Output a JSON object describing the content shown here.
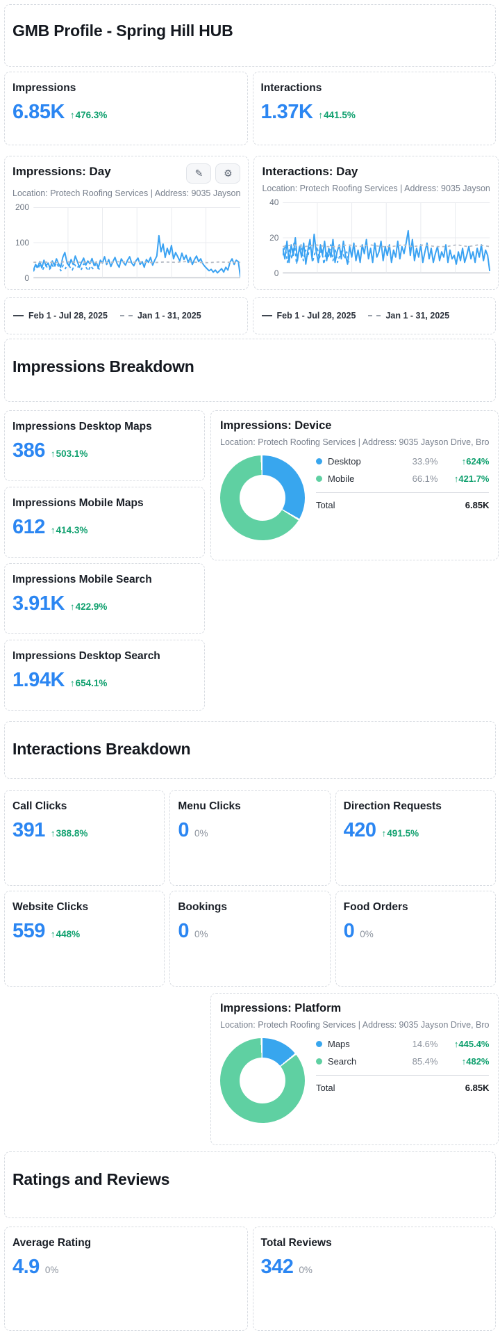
{
  "page_title": "GMB Profile - Spring Hill HUB",
  "toolbar": {
    "edit_icon": "✎",
    "settings_icon": "⚙"
  },
  "legend_row": {
    "solid_label": "Feb 1 - Jul 28, 2025",
    "dashed_label": "Jan 1 - 31, 2025"
  },
  "sections": {
    "impressions_breakdown_title": "Impressions Breakdown",
    "interactions_breakdown_title": "Interactions Breakdown",
    "ratings_title": "Ratings and Reviews"
  },
  "summary_metrics": [
    {
      "label": "Impressions",
      "value": "6.85K",
      "delta": "476.3%",
      "direction": "up"
    },
    {
      "label": "Interactions",
      "value": "1.37K",
      "delta": "441.5%",
      "direction": "up"
    }
  ],
  "impressions_breakdown_metrics": [
    {
      "label": "Impressions Desktop Maps",
      "value": "386",
      "delta": "503.1%",
      "direction": "up"
    },
    {
      "label": "Impressions Mobile Maps",
      "value": "612",
      "delta": "414.3%",
      "direction": "up"
    },
    {
      "label": "Impressions Mobile Search",
      "value": "3.91K",
      "delta": "422.9%",
      "direction": "up"
    },
    {
      "label": "Impressions Desktop Search",
      "value": "1.94K",
      "delta": "654.1%",
      "direction": "up"
    }
  ],
  "interactions_metrics": [
    {
      "label": "Call Clicks",
      "value": "391",
      "delta": "388.8%",
      "direction": "up"
    },
    {
      "label": "Menu Clicks",
      "value": "0",
      "delta": "0%",
      "direction": "flat"
    },
    {
      "label": "Direction Requests",
      "value": "420",
      "delta": "491.5%",
      "direction": "up"
    },
    {
      "label": "Website Clicks",
      "value": "559",
      "delta": "448%",
      "direction": "up"
    },
    {
      "label": "Bookings",
      "value": "0",
      "delta": "0%",
      "direction": "flat"
    },
    {
      "label": "Food Orders",
      "value": "0",
      "delta": "0%",
      "direction": "flat"
    }
  ],
  "ratings_metrics": [
    {
      "label": "Average Rating",
      "value": "4.9",
      "delta": "0%",
      "direction": "flat"
    },
    {
      "label": "Total Reviews",
      "value": "342",
      "delta": "0%",
      "direction": "flat"
    }
  ],
  "colors": {
    "accent_blue": "#2b86f2",
    "chart_blue": "#3aa2f2",
    "positive_green": "#0fa06e",
    "neutral_gray": "#8b929d",
    "donut_blue": "#38a6ee",
    "donut_green": "#5fd0a2",
    "dashed_gray": "#b6bcc6"
  },
  "chart_data": [
    {
      "id": "impressions-day",
      "type": "line",
      "title": "Impressions: Day",
      "subtitle": "Location: Protech Roofing Services | Address: 9035 Jayson",
      "ylim": [
        0,
        200
      ],
      "yticks": [
        "200",
        "100",
        "0"
      ],
      "grid": true,
      "legend": [
        {
          "label": "Feb 1 - Jul 28, 2025",
          "style": "solid"
        },
        {
          "label": "Jan 1 - 31, 2025",
          "style": "dashed"
        }
      ],
      "series": [
        {
          "name": "Feb 1 - Jul 28, 2025",
          "style": "solid",
          "color": "#3aa2f2",
          "values": [
            22,
            38,
            30,
            46,
            28,
            50,
            34,
            42,
            26,
            48,
            36,
            54,
            40,
            30,
            58,
            72,
            44,
            34,
            52,
            38,
            62,
            46,
            30,
            44,
            56,
            36,
            48,
            40,
            55,
            35,
            45,
            28,
            50,
            42,
            60,
            38,
            52,
            32,
            46,
            58,
            40,
            30,
            54,
            44,
            36,
            50,
            60,
            42,
            34,
            48,
            56,
            38,
            46,
            30,
            52,
            44,
            58,
            36,
            50,
            62,
            120,
            74,
            96,
            58,
            84,
            66,
            92,
            54,
            72,
            60,
            48,
            70,
            52,
            64,
            44,
            58,
            38,
            52,
            62,
            46,
            54,
            40,
            32,
            26,
            20,
            24,
            16,
            22,
            14,
            20,
            26,
            16,
            30,
            22,
            44,
            54,
            38,
            50,
            46,
            2
          ]
        },
        {
          "name": "Jan 1 - 31, 2025",
          "style": "dashed",
          "color": "#3aa2f2",
          "span": 0.32,
          "values": [
            18,
            34,
            26,
            40,
            22,
            36,
            30,
            24,
            38,
            28,
            42,
            32,
            20,
            36,
            26,
            44,
            30,
            22,
            38,
            28,
            34,
            24,
            40,
            30,
            20,
            34,
            26,
            38,
            28,
            24
          ]
        },
        {
          "name": "previous period level",
          "style": "dashed",
          "color": "#b6bcc6",
          "span": 1,
          "values": [
            44,
            45,
            43,
            46,
            44,
            45,
            43,
            44,
            46,
            44,
            45,
            43,
            45,
            44,
            46,
            44,
            43,
            45,
            44,
            44
          ]
        }
      ]
    },
    {
      "id": "interactions-day",
      "type": "line",
      "title": "Interactions: Day",
      "subtitle": "Location: Protech Roofing Services | Address: 9035 Jayson",
      "ylim": [
        0,
        40
      ],
      "yticks": [
        "40",
        "20",
        "0"
      ],
      "grid": true,
      "legend": [
        {
          "label": "Feb 1 - Jul 28, 2025",
          "style": "solid"
        },
        {
          "label": "Jan 1 - 31, 2025",
          "style": "dashed"
        }
      ],
      "series": [
        {
          "name": "Feb 1 - Jul 28, 2025",
          "style": "solid",
          "color": "#3aa2f2",
          "values": [
            14,
            8,
            18,
            6,
            16,
            10,
            20,
            7,
            15,
            9,
            17,
            5,
            13,
            19,
            8,
            22,
            12,
            6,
            16,
            10,
            18,
            7,
            14,
            9,
            19,
            6,
            12,
            16,
            8,
            18,
            10,
            5,
            15,
            9,
            17,
            7,
            13,
            6,
            16,
            11,
            19,
            8,
            14,
            6,
            17,
            9,
            12,
            18,
            7,
            15,
            10,
            16,
            6,
            13,
            9,
            18,
            8,
            15,
            11,
            17,
            24,
            10,
            19,
            7,
            14,
            9,
            16,
            6,
            12,
            17,
            8,
            14,
            6,
            11,
            15,
            7,
            12,
            9,
            16,
            6,
            13,
            8,
            10,
            5,
            12,
            7,
            14,
            6,
            10,
            15,
            8,
            12,
            6,
            14,
            9,
            16,
            7,
            13,
            10,
            1
          ]
        },
        {
          "name": "Jan 1 - 31, 2025",
          "style": "dashed",
          "color": "#3aa2f2",
          "span": 0.32,
          "values": [
            10,
            16,
            6,
            14,
            8,
            18,
            5,
            12,
            16,
            7,
            13,
            9,
            17,
            6,
            11,
            15,
            8,
            14,
            5,
            12,
            9,
            16,
            7,
            13,
            6,
            10,
            14,
            8,
            12,
            6
          ]
        },
        {
          "name": "previous period level",
          "style": "dashed",
          "color": "#b6bcc6",
          "span": 1,
          "values": [
            15,
            16,
            15,
            16,
            15,
            15,
            16,
            15,
            16,
            15,
            15,
            16,
            15,
            16,
            15,
            15,
            16,
            15,
            16,
            15
          ]
        }
      ]
    },
    {
      "id": "impressions-device",
      "type": "donut",
      "title": "Impressions: Device",
      "subtitle": "Location: Protech Roofing Services | Address: 9035 Jayson Drive, Bro",
      "slices": [
        {
          "label": "Desktop",
          "pct": 33.9,
          "pct_label": "33.9%",
          "change": "624%",
          "direction": "up",
          "color": "#38a6ee"
        },
        {
          "label": "Mobile",
          "pct": 66.1,
          "pct_label": "66.1%",
          "change": "421.7%",
          "direction": "up",
          "color": "#5fd0a2"
        }
      ],
      "total_label": "Total",
      "total_value": "6.85K"
    },
    {
      "id": "impressions-platform",
      "type": "donut",
      "title": "Impressions: Platform",
      "subtitle": "Location: Protech Roofing Services | Address: 9035 Jayson Drive, Bro",
      "slices": [
        {
          "label": "Maps",
          "pct": 14.6,
          "pct_label": "14.6%",
          "change": "445.4%",
          "direction": "up",
          "color": "#38a6ee"
        },
        {
          "label": "Search",
          "pct": 85.4,
          "pct_label": "85.4%",
          "change": "482%",
          "direction": "up",
          "color": "#5fd0a2"
        }
      ],
      "total_label": "Total",
      "total_value": "6.85K"
    }
  ]
}
